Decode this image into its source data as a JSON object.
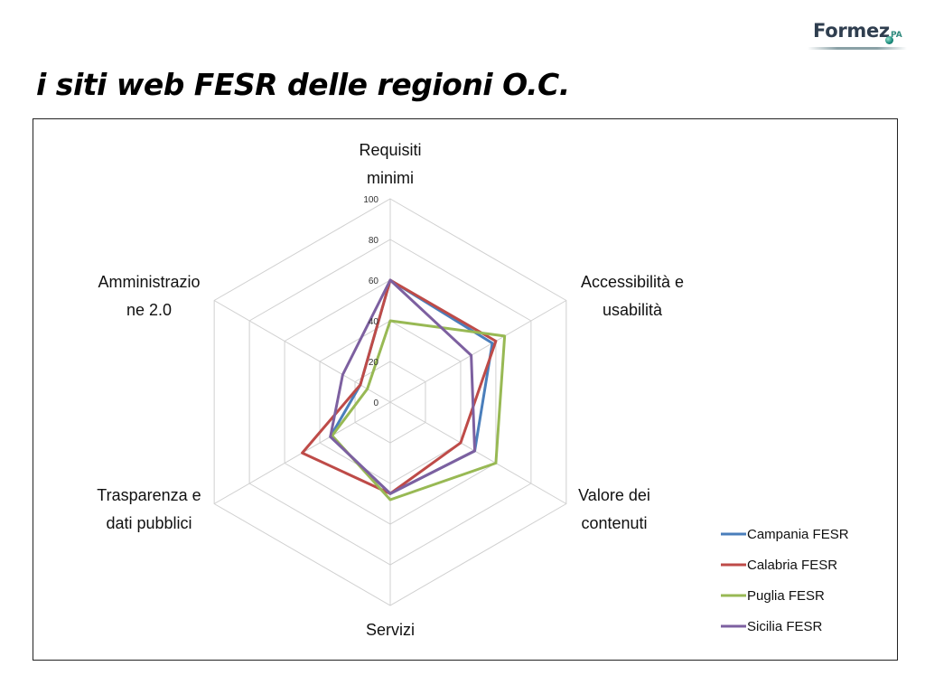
{
  "header": {
    "logo_text": "Formez",
    "logo_sub": "PA",
    "title": "i siti web FESR delle regioni O.C."
  },
  "chart_data": {
    "type": "radar",
    "title": "",
    "axes": [
      [
        "Requisiti",
        "minimi"
      ],
      [
        "Accessibilità e",
        "usabilità"
      ],
      [
        "Valore dei",
        "contenuti"
      ],
      [
        "Servizi"
      ],
      [
        "Trasparenza e",
        "dati pubblici"
      ],
      [
        "Amministrazio",
        "ne 2.0"
      ]
    ],
    "r_ticks": [
      0,
      20,
      40,
      60,
      80,
      100
    ],
    "rlim": [
      0,
      100
    ],
    "grid": true,
    "legend_position": "bottom-right",
    "series": [
      {
        "name": "Campania FESR",
        "color": "#4a7ebb",
        "values": [
          60,
          58,
          48,
          45,
          34,
          17
        ]
      },
      {
        "name": "Calabria FESR",
        "color": "#be4b48",
        "values": [
          60,
          60,
          40,
          45,
          50,
          17
        ]
      },
      {
        "name": "Puglia FESR",
        "color": "#98b954",
        "values": [
          40,
          65,
          60,
          48,
          33,
          13
        ]
      },
      {
        "name": "Sicilia FESR",
        "color": "#7d60a0",
        "values": [
          60,
          46,
          48,
          45,
          34,
          27
        ]
      }
    ]
  }
}
